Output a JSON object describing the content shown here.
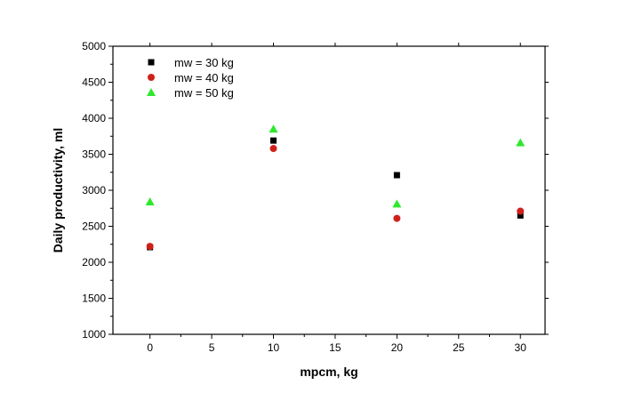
{
  "chart_data": {
    "type": "scatter",
    "xlabel": "mpcm, kg",
    "ylabel": "Daily productivity, ml",
    "xlim": [
      -3,
      32
    ],
    "ylim": [
      1000,
      5000
    ],
    "xticks": [
      0,
      5,
      10,
      15,
      20,
      25,
      30
    ],
    "yticks": [
      1000,
      1500,
      2000,
      2500,
      3000,
      3500,
      4000,
      4500,
      5000
    ],
    "grid": false,
    "legend_position": "top-left",
    "series": [
      {
        "name": "mw = 30 kg",
        "marker": "square",
        "color": "#000000",
        "x": [
          0,
          10,
          20,
          30
        ],
        "y": [
          2210,
          3690,
          3210,
          2650
        ]
      },
      {
        "name": "mw = 40 kg",
        "marker": "circle",
        "color": "#d0201a",
        "x": [
          0,
          10,
          20,
          30
        ],
        "y": [
          2220,
          3580,
          2610,
          2710
        ]
      },
      {
        "name": "mw = 50 kg",
        "marker": "triangle",
        "color": "#2ee82e",
        "x": [
          0,
          10,
          20,
          30
        ],
        "y": [
          2840,
          3850,
          2810,
          3660
        ]
      }
    ]
  }
}
